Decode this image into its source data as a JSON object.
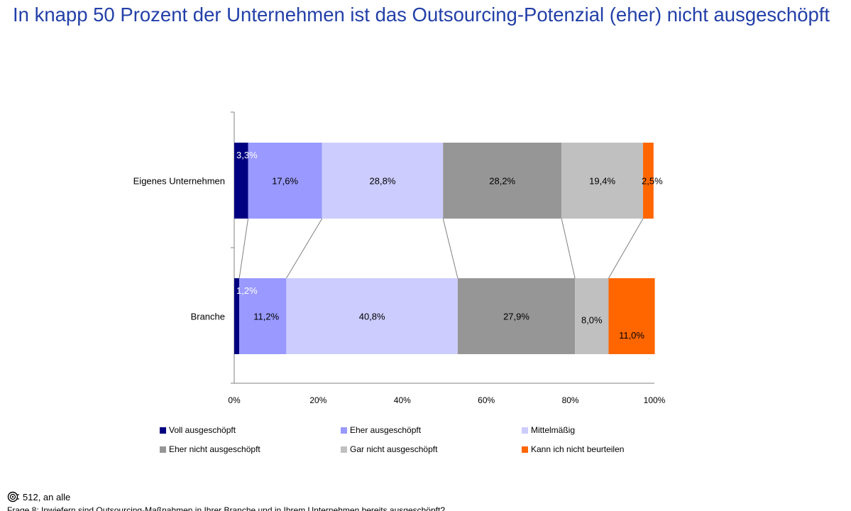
{
  "title": "In knapp 50 Prozent der Unternehmen ist das Outsourcing-Potenzial (eher) nicht ausgeschöpft",
  "chart_data": {
    "type": "bar",
    "orientation": "horizontal",
    "stacked": true,
    "categories": [
      "Eigenes Unternehmen",
      "Branche"
    ],
    "series": [
      {
        "name": "Voll ausgeschöpft",
        "values": [
          3.3,
          1.2
        ],
        "labels": [
          "3,3%",
          "1,2%"
        ],
        "color": "#000080",
        "label_color": "#ffffff"
      },
      {
        "name": "Eher ausgeschöpft",
        "values": [
          17.6,
          11.2
        ],
        "labels": [
          "17,6%",
          "11,2%"
        ],
        "color": "#9999ff",
        "label_color": "#000000"
      },
      {
        "name": "Mittelmäßig",
        "values": [
          28.8,
          40.8
        ],
        "labels": [
          "28,8%",
          "40,8%"
        ],
        "color": "#ccccff",
        "label_color": "#000000"
      },
      {
        "name": "Eher nicht ausgeschöpft",
        "values": [
          28.2,
          27.9
        ],
        "labels": [
          "28,2%",
          "27,9%"
        ],
        "color": "#969696",
        "label_color": "#000000"
      },
      {
        "name": "Gar nicht ausgeschöpft",
        "values": [
          19.4,
          8.0
        ],
        "labels": [
          "19,4%",
          "8,0%"
        ],
        "color": "#c0c0c0",
        "label_color": "#000000"
      },
      {
        "name": "Kann ich nicht beurteilen",
        "values": [
          2.5,
          11.0
        ],
        "labels": [
          "2,5%",
          "11,0%"
        ],
        "color": "#ff6600",
        "label_color": "#000000"
      }
    ],
    "x_ticks": [
      "0%",
      "20%",
      "40%",
      "60%",
      "80%",
      "100%"
    ],
    "xlim": [
      0,
      100
    ],
    "series_lines": true,
    "grid": false,
    "legend": "bottom"
  },
  "footer": {
    "base": "512, an alle",
    "question": "Frage 8: Inwiefern sind Outsourcing-Maßnahmen in Ihrer Branche und in Ihrem Unternehmen bereits ausgeschöpft?"
  }
}
